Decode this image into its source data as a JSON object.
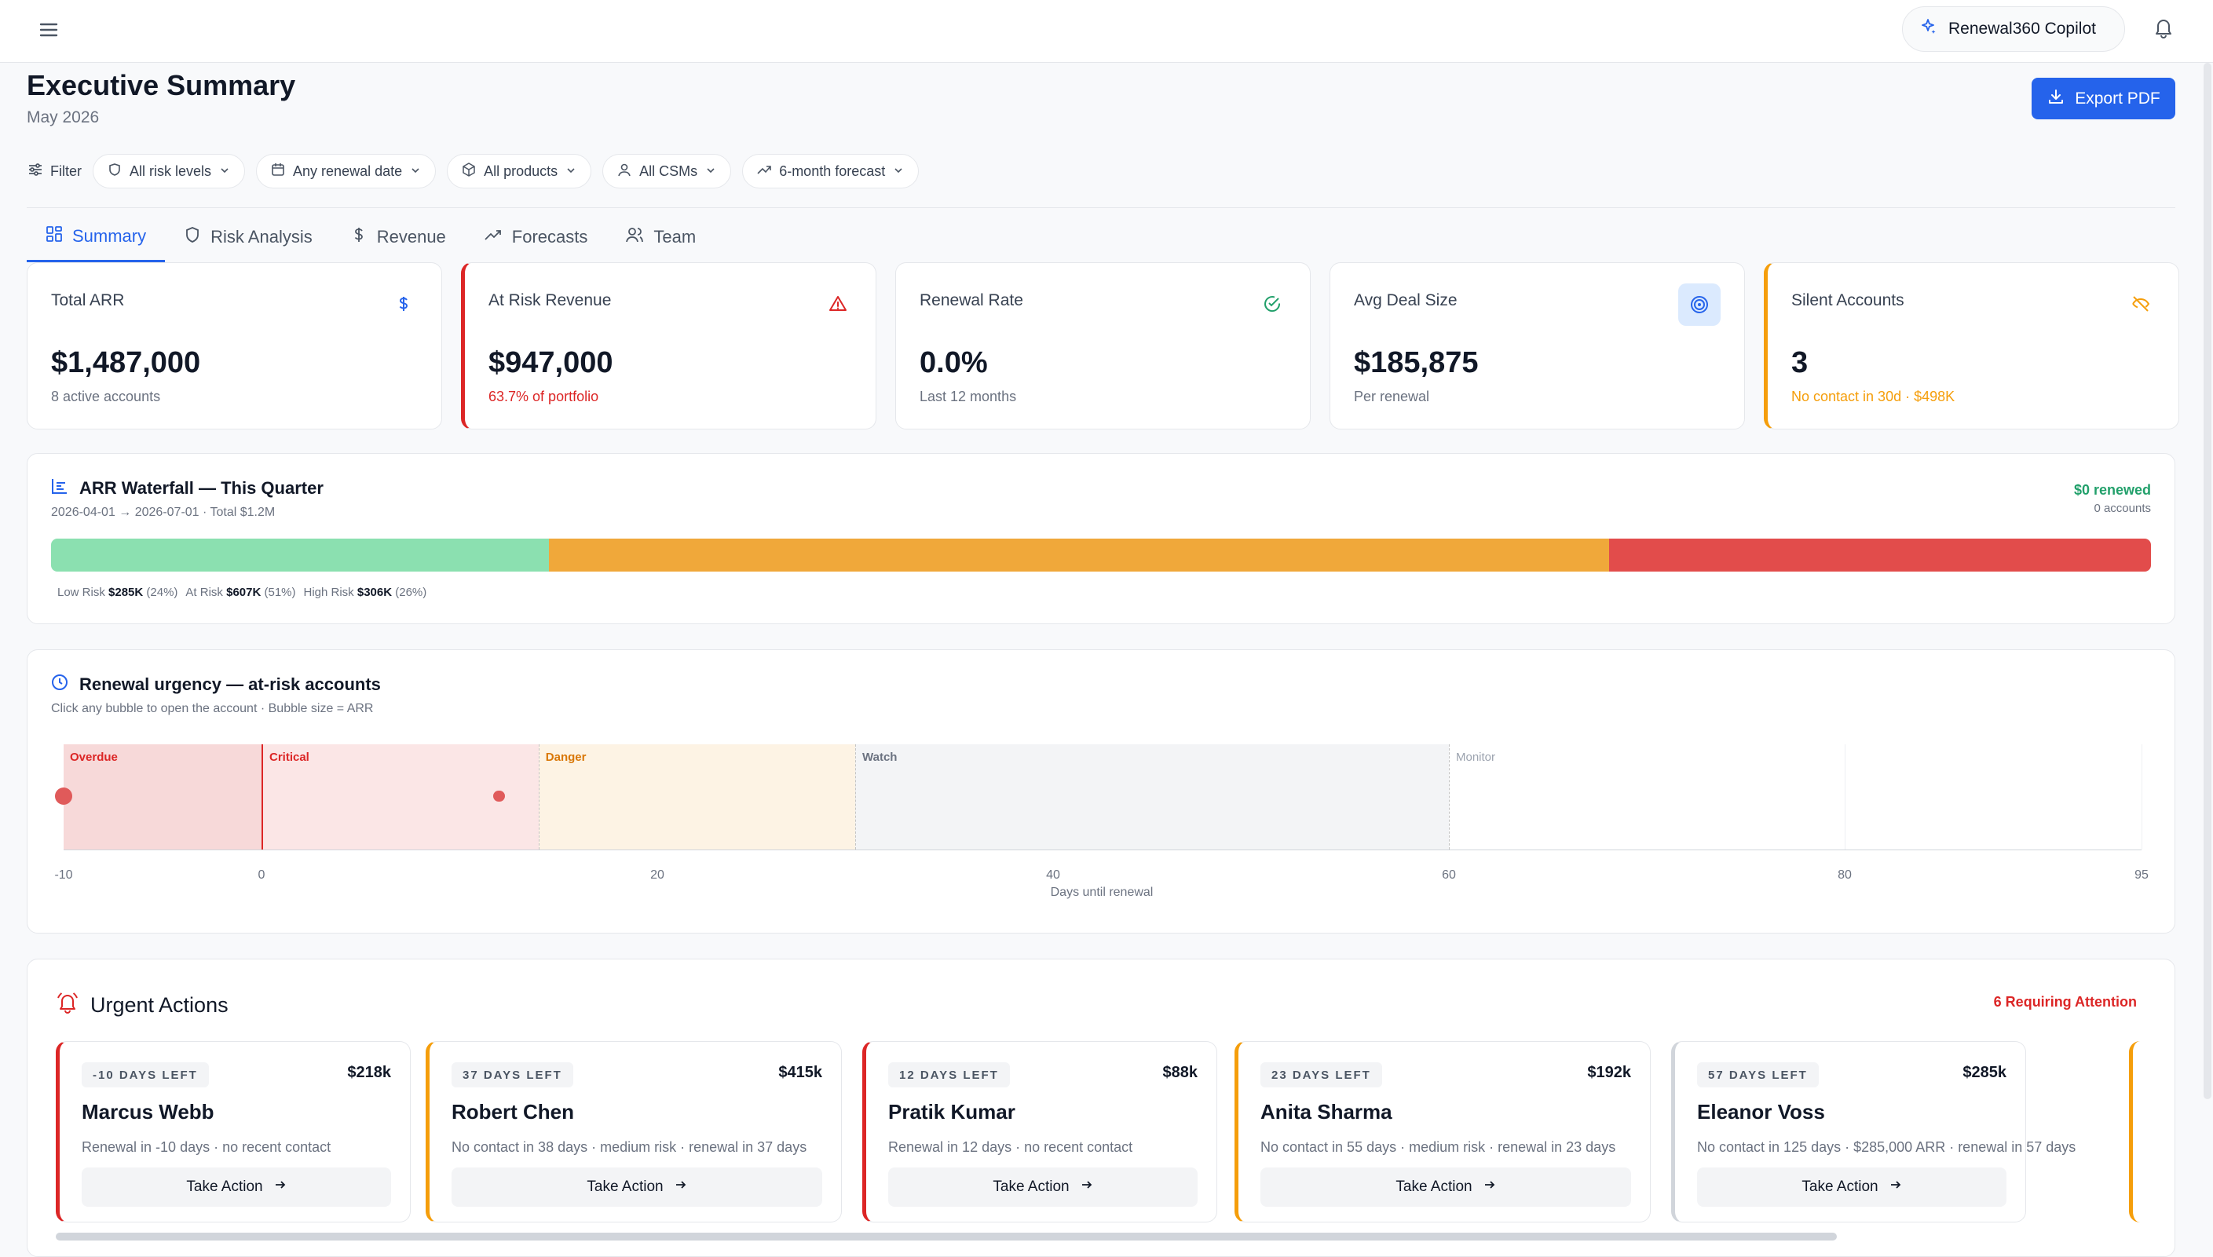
{
  "topbar": {
    "copilot_label": "Renewal360 Copilot"
  },
  "header": {
    "title": "Executive Summary",
    "subtitle": "May 2026",
    "export_label": "Export PDF"
  },
  "filters": {
    "label": "Filter",
    "chips": [
      "All risk levels",
      "Any renewal date",
      "All products",
      "All CSMs",
      "6-month forecast"
    ]
  },
  "tabs": [
    "Summary",
    "Risk Analysis",
    "Revenue",
    "Forecasts",
    "Team"
  ],
  "kpis": [
    {
      "label": "Total ARR",
      "value": "$1,487,000",
      "sub": "8 active accounts",
      "icon": "dollar-icon"
    },
    {
      "label": "At Risk Revenue",
      "value": "$947,000",
      "sub": "63.7% of portfolio",
      "icon": "alert-triangle-icon"
    },
    {
      "label": "Renewal Rate",
      "value": "0.0%",
      "sub": "Last 12 months",
      "icon": "check-circle-icon"
    },
    {
      "label": "Avg Deal Size",
      "value": "$185,875",
      "sub": "Per renewal",
      "icon": "target-icon"
    },
    {
      "label": "Silent Accounts",
      "value": "3",
      "sub": "No contact in 30d · $498K",
      "icon": "eye-off-icon"
    }
  ],
  "waterfall": {
    "title": "ARR Waterfall — This Quarter",
    "subtitle": "2026-04-01 → 2026-07-01 · Total $1.2M",
    "renewed": "$0 renewed",
    "renewed_accounts": "0 accounts",
    "segments": [
      {
        "name": "Low Risk",
        "value": "$285K",
        "pct": "(24%)",
        "share": 0.237,
        "color": "#8be0b0"
      },
      {
        "name": "At Risk",
        "value": "$607K",
        "pct": "(51%)",
        "share": 0.505,
        "color": "#f0a83a"
      },
      {
        "name": "High Risk",
        "value": "$306K",
        "pct": "(26%)",
        "share": 0.258,
        "color": "#e24c4b"
      }
    ]
  },
  "urgency": {
    "title": "Renewal urgency — at-risk accounts",
    "subtitle": "Click any bubble to open the account · Bubble size = ARR",
    "xlabel": "Days until renewal",
    "xlim": [
      -10,
      95
    ],
    "ticks": [
      "-10",
      "0",
      "20",
      "40",
      "60",
      "80",
      "95"
    ],
    "zones": [
      {
        "name": "Overdue",
        "from": -10,
        "to": 0,
        "bg": "#f7d9d9",
        "color": "#dc2626"
      },
      {
        "name": "Critical",
        "from": 0,
        "to": 14,
        "bg": "#fbe6e6",
        "color": "#dc2626"
      },
      {
        "name": "Danger",
        "from": 14,
        "to": 30,
        "bg": "#fdf3e4",
        "color": "#d97706"
      },
      {
        "name": "Watch",
        "from": 30,
        "to": 60,
        "bg": "#f3f4f6",
        "color": "#6b7280"
      },
      {
        "name": "Monitor",
        "from": 60,
        "to": 95,
        "bg": "#ffffff",
        "color": "#9ca3af"
      }
    ],
    "bubbles": [
      {
        "days": -10,
        "arr": 218
      },
      {
        "days": 12,
        "arr": 88
      }
    ]
  },
  "urgent": {
    "title": "Urgent Actions",
    "count_label": "6 Requiring Attention",
    "action_label": "Take Action",
    "items": [
      {
        "badge": "-10 DAYS LEFT",
        "amount": "$218k",
        "name": "Marcus Webb",
        "desc": "Renewal in -10 days · no recent contact",
        "color": "#dc2626"
      },
      {
        "badge": "37 DAYS LEFT",
        "amount": "$415k",
        "name": "Robert Chen",
        "desc": "No contact in 38 days · medium risk · renewal in 37 days",
        "color": "#f59e0b"
      },
      {
        "badge": "12 DAYS LEFT",
        "amount": "$88k",
        "name": "Pratik Kumar",
        "desc": "Renewal in 12 days · no recent contact",
        "color": "#dc2626"
      },
      {
        "badge": "23 DAYS LEFT",
        "amount": "$192k",
        "name": "Anita Sharma",
        "desc": "No contact in 55 days · medium risk · renewal in 23 days",
        "color": "#f59e0b"
      },
      {
        "badge": "57 DAYS LEFT",
        "amount": "$285k",
        "name": "Eleanor Voss",
        "desc": "No contact in 125 days · $285,000 ARR · renewal in 57 days",
        "color": "#d1d5db"
      }
    ]
  }
}
